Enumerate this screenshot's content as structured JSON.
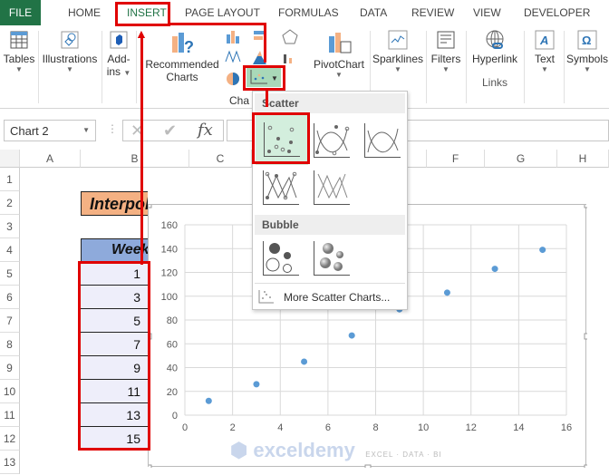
{
  "tabs": [
    "FILE",
    "HOME",
    "INSERT",
    "PAGE LAYOUT",
    "FORMULAS",
    "DATA",
    "REVIEW",
    "VIEW",
    "DEVELOPER"
  ],
  "ribbon": {
    "tables": "Tables",
    "illustrations": "Illustrations",
    "recommended": "Recommended",
    "charts_word": "Charts",
    "charts_group": "Cha",
    "pivotchart": "PivotChart",
    "sparklines": "Sparklines",
    "filters": "Filters",
    "hyperlink": "Hyperlink",
    "links": "Links",
    "text": "Text",
    "symbols": "Symbols",
    "addins1": "Add-",
    "addins2": "ins"
  },
  "namebox": "Chart 2",
  "fx": "fx",
  "columns": [
    "A",
    "B",
    "C",
    "F",
    "G",
    "H"
  ],
  "rows": [
    "1",
    "2",
    "3",
    "4",
    "5",
    "6",
    "7",
    "8",
    "9",
    "10",
    "11",
    "12",
    "13"
  ],
  "title_cell": "Interpolate in Exc",
  "header_cell": "Week",
  "week_values": [
    "1",
    "3",
    "5",
    "7",
    "9",
    "11",
    "13",
    "15"
  ],
  "menu": {
    "scatter": "Scatter",
    "bubble": "Bubble",
    "more": "More Scatter Charts..."
  },
  "watermark": {
    "name": "exceldemy",
    "tag": "EXCEL · DATA · BI"
  },
  "colors": {
    "accent": "#217346",
    "highlight": "#e00000",
    "point": "#5b9bd5",
    "title_fill": "#f4b183",
    "header_fill": "#8eaadb"
  },
  "chart_data": {
    "type": "scatter",
    "x": [
      1,
      3,
      5,
      7,
      9,
      11,
      13,
      15
    ],
    "y": [
      12,
      26,
      45,
      67,
      89,
      103,
      123,
      139
    ],
    "xlim": [
      0,
      16
    ],
    "ylim": [
      0,
      160
    ],
    "xticks": [
      "0",
      "2",
      "4",
      "6",
      "8",
      "10",
      "12",
      "14",
      "16"
    ],
    "yticks": [
      "0",
      "20",
      "40",
      "60",
      "80",
      "100",
      "120",
      "140",
      "160"
    ],
    "grid": true,
    "legend": "none"
  }
}
